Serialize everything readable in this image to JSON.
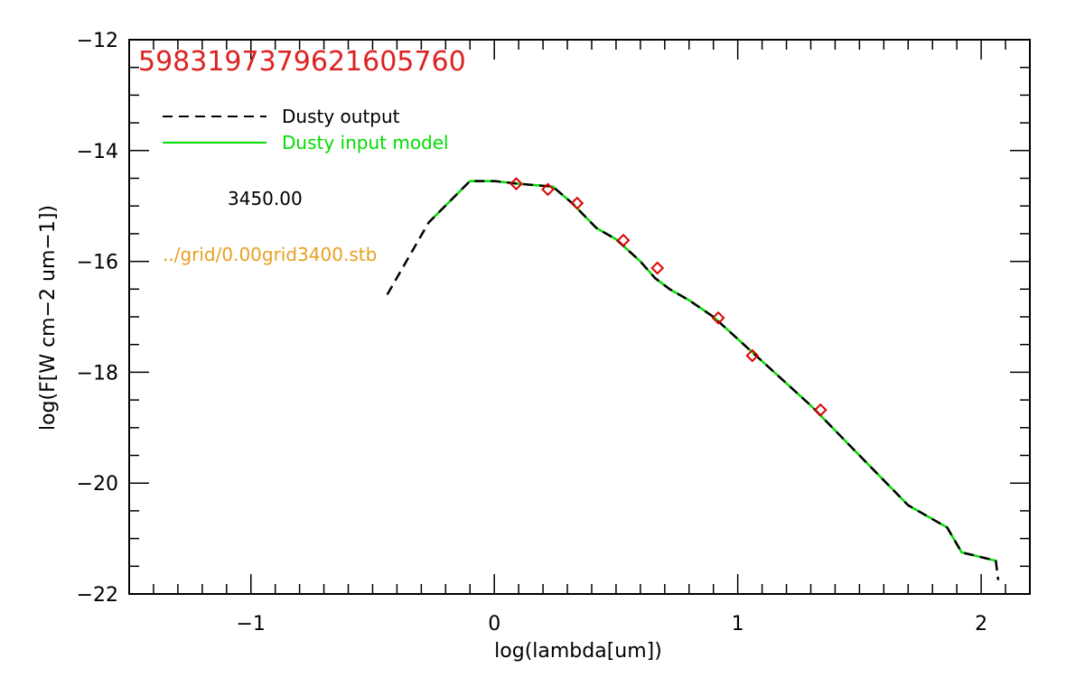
{
  "chart_data": {
    "type": "line",
    "title": "5983197379621605760",
    "xlabel": "log(lambda[um])",
    "ylabel": "log(F[W cm−2 um−1])",
    "xlim": [
      -1.5,
      2.2
    ],
    "ylim": [
      -22,
      -12
    ],
    "x_ticks": [
      -1,
      0,
      1,
      2
    ],
    "x_tick_labels": [
      "−1",
      "0",
      "1",
      "2"
    ],
    "y_ticks": [
      -22,
      -20,
      -18,
      -16,
      -14,
      -12
    ],
    "y_tick_labels": [
      "−22",
      "−20",
      "−18",
      "−16",
      "−14",
      "−12"
    ],
    "annotations": {
      "temperature": "3450.00",
      "model_file": "../grid/0.00grid3400.stb"
    },
    "legend": {
      "placement": "top-left",
      "entries": [
        {
          "label": "Dusty output",
          "color": "#000000",
          "style": "dashed"
        },
        {
          "label": "Dusty input model",
          "color": "#00dd00",
          "style": "solid"
        }
      ]
    },
    "colors": {
      "title": "#dd2222",
      "model_file": "#e8a020",
      "markers": "#dd0000",
      "input_line": "#00dd00"
    },
    "series": [
      {
        "name": "Dusty output",
        "x": [
          -0.44,
          -0.27,
          -0.1,
          0.0,
          0.1,
          0.24,
          0.32,
          0.42,
          0.5,
          0.6,
          0.66,
          0.72,
          0.8,
          0.9,
          1.0,
          1.1,
          1.3,
          1.5,
          1.7,
          1.82,
          1.86,
          1.92,
          2.06,
          2.07
        ],
        "y": [
          -16.6,
          -15.3,
          -14.55,
          -14.55,
          -14.6,
          -14.65,
          -14.95,
          -15.4,
          -15.6,
          -16.0,
          -16.3,
          -16.5,
          -16.7,
          -17.0,
          -17.4,
          -17.8,
          -18.6,
          -19.5,
          -20.4,
          -20.7,
          -20.8,
          -21.25,
          -21.4,
          -21.75
        ]
      },
      {
        "name": "Dusty input model",
        "x": [
          -0.27,
          -0.1,
          0.0,
          0.1,
          0.24,
          0.32,
          0.42,
          0.5,
          0.6,
          0.66,
          0.72,
          0.8,
          0.9,
          1.0,
          1.1,
          1.3,
          1.5,
          1.7,
          1.82,
          1.86,
          1.92,
          2.06
        ],
        "y": [
          -15.3,
          -14.55,
          -14.55,
          -14.6,
          -14.65,
          -14.95,
          -15.4,
          -15.6,
          -16.0,
          -16.3,
          -16.5,
          -16.7,
          -17.0,
          -17.4,
          -17.8,
          -18.6,
          -19.5,
          -20.4,
          -20.7,
          -20.8,
          -21.25,
          -21.4
        ]
      },
      {
        "name": "photometry",
        "type": "scatter",
        "x": [
          0.09,
          0.22,
          0.34,
          0.53,
          0.67,
          0.92,
          1.06,
          1.34
        ],
        "y": [
          -14.6,
          -14.7,
          -14.95,
          -15.62,
          -16.12,
          -17.02,
          -17.7,
          -18.68
        ]
      }
    ]
  }
}
